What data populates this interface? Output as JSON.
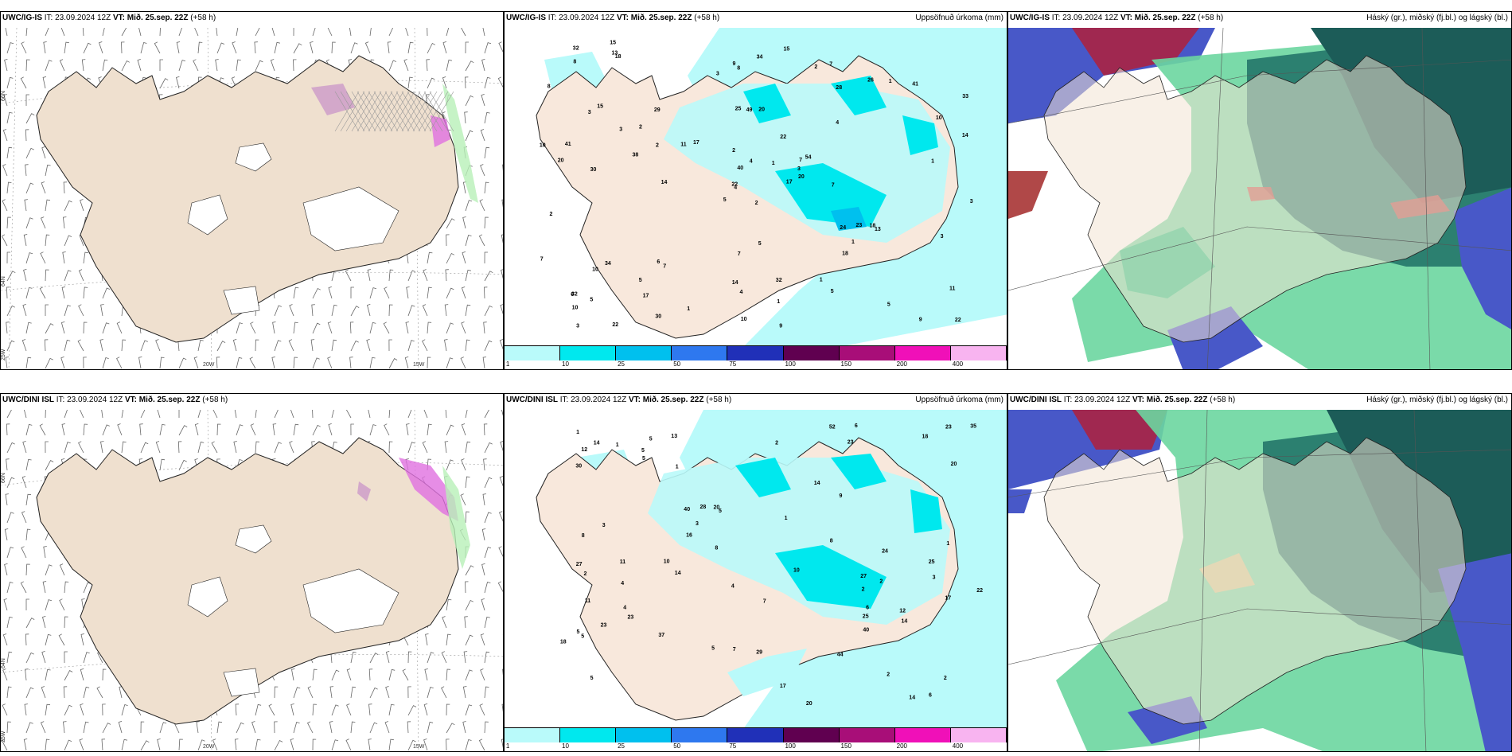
{
  "panels": [
    {
      "model": "UWC/IG-IS",
      "it": "IT: 23.09.2024 12Z",
      "vt_prefix": "VT:",
      "vt": "Mið. 25.sep. 22Z",
      "lead": "(+58 h)",
      "right": "",
      "type": "wind"
    },
    {
      "model": "UWC/IG-IS",
      "it": "IT: 23.09.2024 12Z",
      "vt_prefix": "VT:",
      "vt": "Mið. 25.sep. 22Z",
      "lead": "(+58 h)",
      "right": "Uppsöfnuð úrkoma (mm)",
      "type": "precip"
    },
    {
      "model": "UWC/IG-IS",
      "it": "IT: 23.09.2024 12Z",
      "vt_prefix": "VT:",
      "vt": "Mið. 25.sep. 22Z",
      "lead": "(+58 h)",
      "right": "Háský (gr.), miðský (fj.bl.) og lágský (bl.)",
      "type": "cloud"
    },
    {
      "model": "UWC/DINI ISL",
      "it": "IT: 23.09.2024 12Z",
      "vt_prefix": "VT:",
      "vt": "Mið. 25.sep. 22Z",
      "lead": "(+58 h)",
      "right": "",
      "type": "wind"
    },
    {
      "model": "UWC/DINI ISL",
      "it": "IT: 23.09.2024 12Z",
      "vt_prefix": "VT:",
      "vt": "Mið. 25.sep. 22Z",
      "lead": "(+58 h)",
      "right": "Uppsöfnuð úrkoma (mm)",
      "type": "precip"
    },
    {
      "model": "UWC/DINI ISL",
      "it": "IT: 23.09.2024 12Z",
      "vt_prefix": "VT:",
      "vt": "Mið. 25.sep. 22Z",
      "lead": "(+58 h)",
      "right": "Háský (gr.), miðský (fj.bl.) og lágský (bl.)",
      "type": "cloud"
    }
  ],
  "legend": {
    "ticks": [
      "1",
      "10",
      "25",
      "50",
      "75",
      "100",
      "150",
      "200",
      "400"
    ],
    "colors": [
      "#b9fafa",
      "#00e8ee",
      "#00c0ee",
      "#2e78ef",
      "#2030b8",
      "#600050",
      "#a80e78",
      "#f010b8",
      "#f8b4f0"
    ]
  },
  "grid_labels": {
    "lat_66": "66N",
    "lat_64": "64N",
    "lat_65": "65N",
    "lon_20": "20W",
    "lon_15": "15W",
    "lon_25": "25W"
  },
  "station_values_top": [
    "2",
    "3",
    "4",
    "32",
    "7",
    "7",
    "7",
    "20",
    "28",
    "17",
    "18",
    "22",
    "30",
    "33",
    "5",
    "4",
    "22",
    "25",
    "22",
    "34",
    "17",
    "10",
    "17",
    "49",
    "54",
    "13",
    "15",
    "8",
    "20",
    "24",
    "14",
    "22",
    "14",
    "40",
    "29",
    "26",
    "6",
    "9",
    "11",
    "18",
    "15",
    "11",
    "38",
    "18",
    "30",
    "10",
    "3",
    "3",
    "4",
    "20",
    "10",
    "10",
    "8",
    "1",
    "5",
    "5",
    "13",
    "32",
    "32",
    "41",
    "34",
    "14",
    "41",
    "2",
    "1",
    "15",
    "2",
    "3",
    "4",
    "7",
    "7",
    "1",
    "23",
    "2",
    "6",
    "8",
    "3",
    "2",
    "2",
    "1",
    "1",
    "5",
    "7",
    "3",
    "10",
    "1",
    "5",
    "5",
    "9",
    "1",
    "9",
    "3"
  ],
  "station_values_bottom": [
    "2",
    "3",
    "5",
    "5",
    "5",
    "2",
    "5",
    "23",
    "40",
    "20",
    "30",
    "27",
    "12",
    "2",
    "5",
    "1",
    "7",
    "10",
    "20",
    "23",
    "35",
    "18",
    "16",
    "17",
    "52",
    "5",
    "6",
    "2",
    "5",
    "24",
    "17",
    "44",
    "3",
    "14",
    "25",
    "14",
    "25",
    "11",
    "29",
    "23",
    "20",
    "6",
    "6",
    "7",
    "12",
    "37",
    "18",
    "14",
    "8",
    "8",
    "22",
    "28",
    "23",
    "27",
    "40",
    "14",
    "9",
    "1",
    "4",
    "1",
    "2",
    "1",
    "1",
    "11",
    "2",
    "3",
    "4",
    "4",
    "10",
    "5",
    "14",
    "13",
    "8"
  ]
}
